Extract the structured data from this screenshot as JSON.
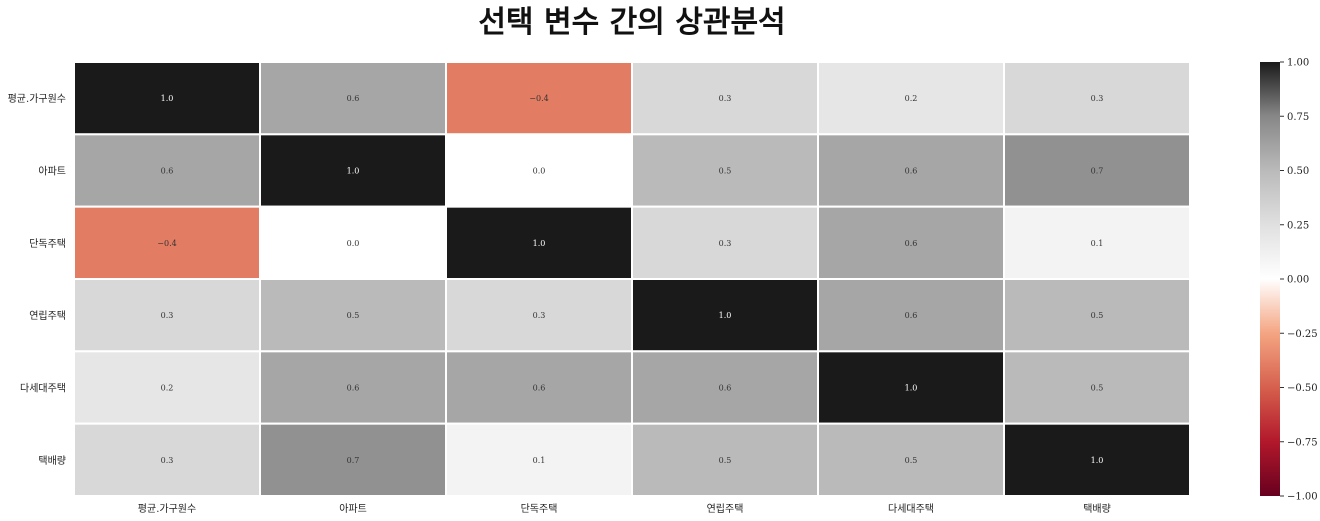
{
  "chart_data": {
    "type": "heatmap",
    "title": "선택 변수 간의 상관분석",
    "x_labels": [
      "평균.가구원수",
      "아파트",
      "단독주택",
      "연립주택",
      "다세대주택",
      "택배량"
    ],
    "y_labels": [
      "평균.가구원수",
      "아파트",
      "단독주택",
      "연립주택",
      "다세대주택",
      "택배량"
    ],
    "values": [
      [
        1.0,
        0.6,
        -0.4,
        0.3,
        0.2,
        0.3
      ],
      [
        0.6,
        1.0,
        0.0,
        0.5,
        0.6,
        0.7
      ],
      [
        -0.4,
        0.0,
        1.0,
        0.3,
        0.6,
        0.1
      ],
      [
        0.3,
        0.5,
        0.3,
        1.0,
        0.6,
        0.5
      ],
      [
        0.2,
        0.6,
        0.6,
        0.6,
        1.0,
        0.5
      ],
      [
        0.3,
        0.7,
        0.1,
        0.5,
        0.5,
        1.0
      ]
    ],
    "value_format": "0.0",
    "colorbar": {
      "min": -1.0,
      "max": 1.0,
      "ticks": [
        "1.00",
        "0.75",
        "0.50",
        "0.25",
        "0.00",
        "−0.25",
        "−0.50",
        "−0.75",
        "−1.00"
      ],
      "colormap": "RdGy_r",
      "positive_color": "#1a1a1a",
      "zero_color": "#ffffff",
      "negative_color": "#67001f"
    },
    "grid": true,
    "cell_border_color": "#ffffff"
  }
}
